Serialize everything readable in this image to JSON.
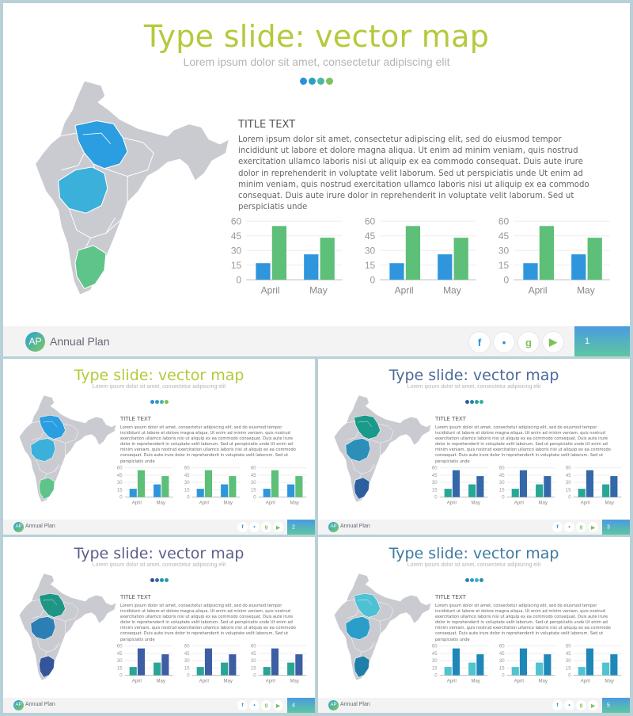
{
  "slides": [
    {
      "title": "Type slide: vector map",
      "subtitle": "Lorem ipsum dolor sit amet, consectetur adipiscing elit",
      "text_title": "TITLE TEXT",
      "body": "Lorem ipsum dolor sit amet, consectetur adipiscing elit, sed do eiusmod tempor incididunt ut labore et dolore magna aliqua. Ut enim ad minim veniam, quis nostrud exercitation ullamco laboris nisi ut aliquip ex ea commodo consequat. Duis aute irure dolor in reprehenderit in voluptate velit laborum. Sed ut perspiciatis unde Ut enim ad minim veniam, quis nostrud exercitation ullamco laboris nisi ut aliquip ex ea commodo consequat. Duis aute irure dolor in reprehenderit in voluptate velit laborum. Sed ut perspiciatis unde",
      "brand": "Annual Plan",
      "logo": "AP",
      "page": "1",
      "colors": {
        "title": "#b6c93a",
        "dots": [
          "#2e8fd9",
          "#2aa0c2",
          "#4cb6a8",
          "#7cc35a"
        ],
        "map": [
          "#2a9ee0",
          "#3bb0da",
          "#5fc48a"
        ],
        "bar1": "#2f96dd",
        "bar2": "#5dbf78"
      }
    },
    {
      "title": "Type slide: vector map",
      "subtitle": "Lorem ipsum dolor sit amet, consectetur adipiscing elit",
      "text_title": "TITLE TEXT",
      "body": "Lorem ipsum dolor sit amet, consectetur adipiscing elit, sed do eiusmod tempor incididunt ut labore et dolore magna aliqua. Ut enim ad minim veniam, quis nostrud exercitation ullamco laboris nisi ut aliquip ex ea commodo consequat. Duis aute irure dolor in reprehenderit in voluptate velit laborum. Sed ut perspiciatis unde Ut enim ad minim veniam, quis nostrud exercitation ullamco laboris nisi ut aliquip ex ea commodo consequat. Duis aute irure dolor in reprehenderit in voluptate velit laborum. Sed ut perspiciatis unde",
      "brand": "Annual Plan",
      "logo": "AP",
      "page": "2",
      "colors": {
        "title": "#b6c93a",
        "dots": [
          "#2e8fd9",
          "#2aa0c2",
          "#4cb6a8",
          "#7cc35a"
        ],
        "map": [
          "#2a9ee0",
          "#3bb0da",
          "#5fc48a"
        ],
        "bar1": "#2f96dd",
        "bar2": "#5dbf78"
      }
    },
    {
      "title": "Type slide: vector map",
      "subtitle": "Lorem ipsum dolor sit amet, consectetur adipiscing elit",
      "text_title": "TITLE TEXT",
      "body": "Lorem ipsum dolor sit amet, consectetur adipiscing elit, sed do eiusmod tempor incididunt ut labore et dolore magna aliqua. Ut enim ad minim veniam, quis nostrud exercitation ullamco laboris nisi ut aliquip ex ea commodo consequat. Duis aute irure dolor in reprehenderit in voluptate velit laborum. Sed ut perspiciatis unde Ut enim ad minim veniam, quis nostrud exercitation ullamco laboris nisi ut aliquip ex ea commodo consequat. Duis aute irure dolor in reprehenderit in voluptate velit laborum. Sed ut perspiciatis unde",
      "brand": "Annual Plan",
      "logo": "AP",
      "page": "3",
      "colors": {
        "title": "#4d6a9a",
        "dots": [
          "#2f5e9e",
          "#2f80b0",
          "#2aa39d",
          "#2fb09a"
        ],
        "map": [
          "#1a9a8a",
          "#2b8fba",
          "#2c5f9e"
        ],
        "bar1": "#27a795",
        "bar2": "#3468a8"
      }
    },
    {
      "title": "Type slide: vector map",
      "subtitle": "Lorem ipsum dolor sit amet, consectetur adipiscing elit",
      "text_title": "TITLE TEXT",
      "body": "Lorem ipsum dolor sit amet, consectetur adipiscing elit, sed do eiusmod tempor incididunt ut labore et dolore magna aliqua. Ut enim ad minim veniam, quis nostrud exercitation ullamco laboris nisi ut aliquip ex ea commodo consequat. Duis aute irure dolor in reprehenderit in voluptate velit laborum. Sed ut perspiciatis unde Ut enim ad minim veniam, quis nostrud exercitation ullamco laboris nisi ut aliquip ex ea commodo consequat. Duis aute irure dolor in reprehenderit in voluptate velit laborum. Sed ut perspiciatis unde",
      "brand": "Annual Plan",
      "logo": "AP",
      "page": "4",
      "colors": {
        "title": "#5b5f8a",
        "dots": [
          "#3a4f8e",
          "#2f6fb0",
          "#2a8fb3",
          "#2a9e9a"
        ],
        "map": [
          "#1f9685",
          "#2c7fb5",
          "#35559a"
        ],
        "bar1": "#2aa595",
        "bar2": "#3d5ea5"
      }
    },
    {
      "title": "Type slide: vector map",
      "subtitle": "Lorem ipsum dolor sit amet, consectetur adipiscing elit",
      "text_title": "TITLE TEXT",
      "body": "Lorem ipsum dolor sit amet, consectetur adipiscing elit, sed do eiusmod tempor incididunt ut labore et dolore magna aliqua. Ut enim ad minim veniam, quis nostrud exercitation ullamco laboris nisi ut aliquip ex ea commodo consequat. Duis aute irure dolor in reprehenderit in voluptate velit laborum. Sed ut perspiciatis unde Ut enim ad minim veniam, quis nostrud exercitation ullamco laboris nisi ut aliquip ex ea commodo consequat. Duis aute irure dolor in reprehenderit in voluptate velit laborum. Sed ut perspiciatis unde",
      "brand": "Annual Plan",
      "logo": "AP",
      "page": "5",
      "colors": {
        "title": "#3c7aa0",
        "dots": [
          "#2a7fb8",
          "#2aa0c8",
          "#35b0c4",
          "#2e8fb0"
        ],
        "map": [
          "#4fc1d4",
          "#2a9ec8",
          "#1f7fa8"
        ],
        "bar1": "#4fc3d0",
        "bar2": "#1f88b8"
      }
    }
  ],
  "social_icons": [
    "facebook-icon",
    "twitter-icon",
    "google-plus-icon",
    "youtube-icon"
  ],
  "social_glyphs": [
    "f",
    "•",
    "g",
    "▶"
  ],
  "chart_data": [
    {
      "type": "bar",
      "categories": [
        "April",
        "May"
      ],
      "series": [
        {
          "values": [
            17,
            26
          ]
        },
        {
          "values": [
            55,
            43
          ]
        }
      ],
      "ylim": [
        0,
        60
      ],
      "yticks": [
        "0",
        "15",
        "30",
        "45",
        "60"
      ]
    },
    {
      "type": "bar",
      "categories": [
        "April",
        "May"
      ],
      "series": [
        {
          "values": [
            17,
            26
          ]
        },
        {
          "values": [
            55,
            43
          ]
        }
      ],
      "ylim": [
        0,
        60
      ],
      "yticks": [
        "0",
        "15",
        "30",
        "45",
        "60"
      ]
    },
    {
      "type": "bar",
      "categories": [
        "April",
        "May"
      ],
      "series": [
        {
          "values": [
            17,
            26
          ]
        },
        {
          "values": [
            55,
            43
          ]
        }
      ],
      "ylim": [
        0,
        60
      ],
      "yticks": [
        "0",
        "15",
        "30",
        "45",
        "60"
      ]
    }
  ]
}
